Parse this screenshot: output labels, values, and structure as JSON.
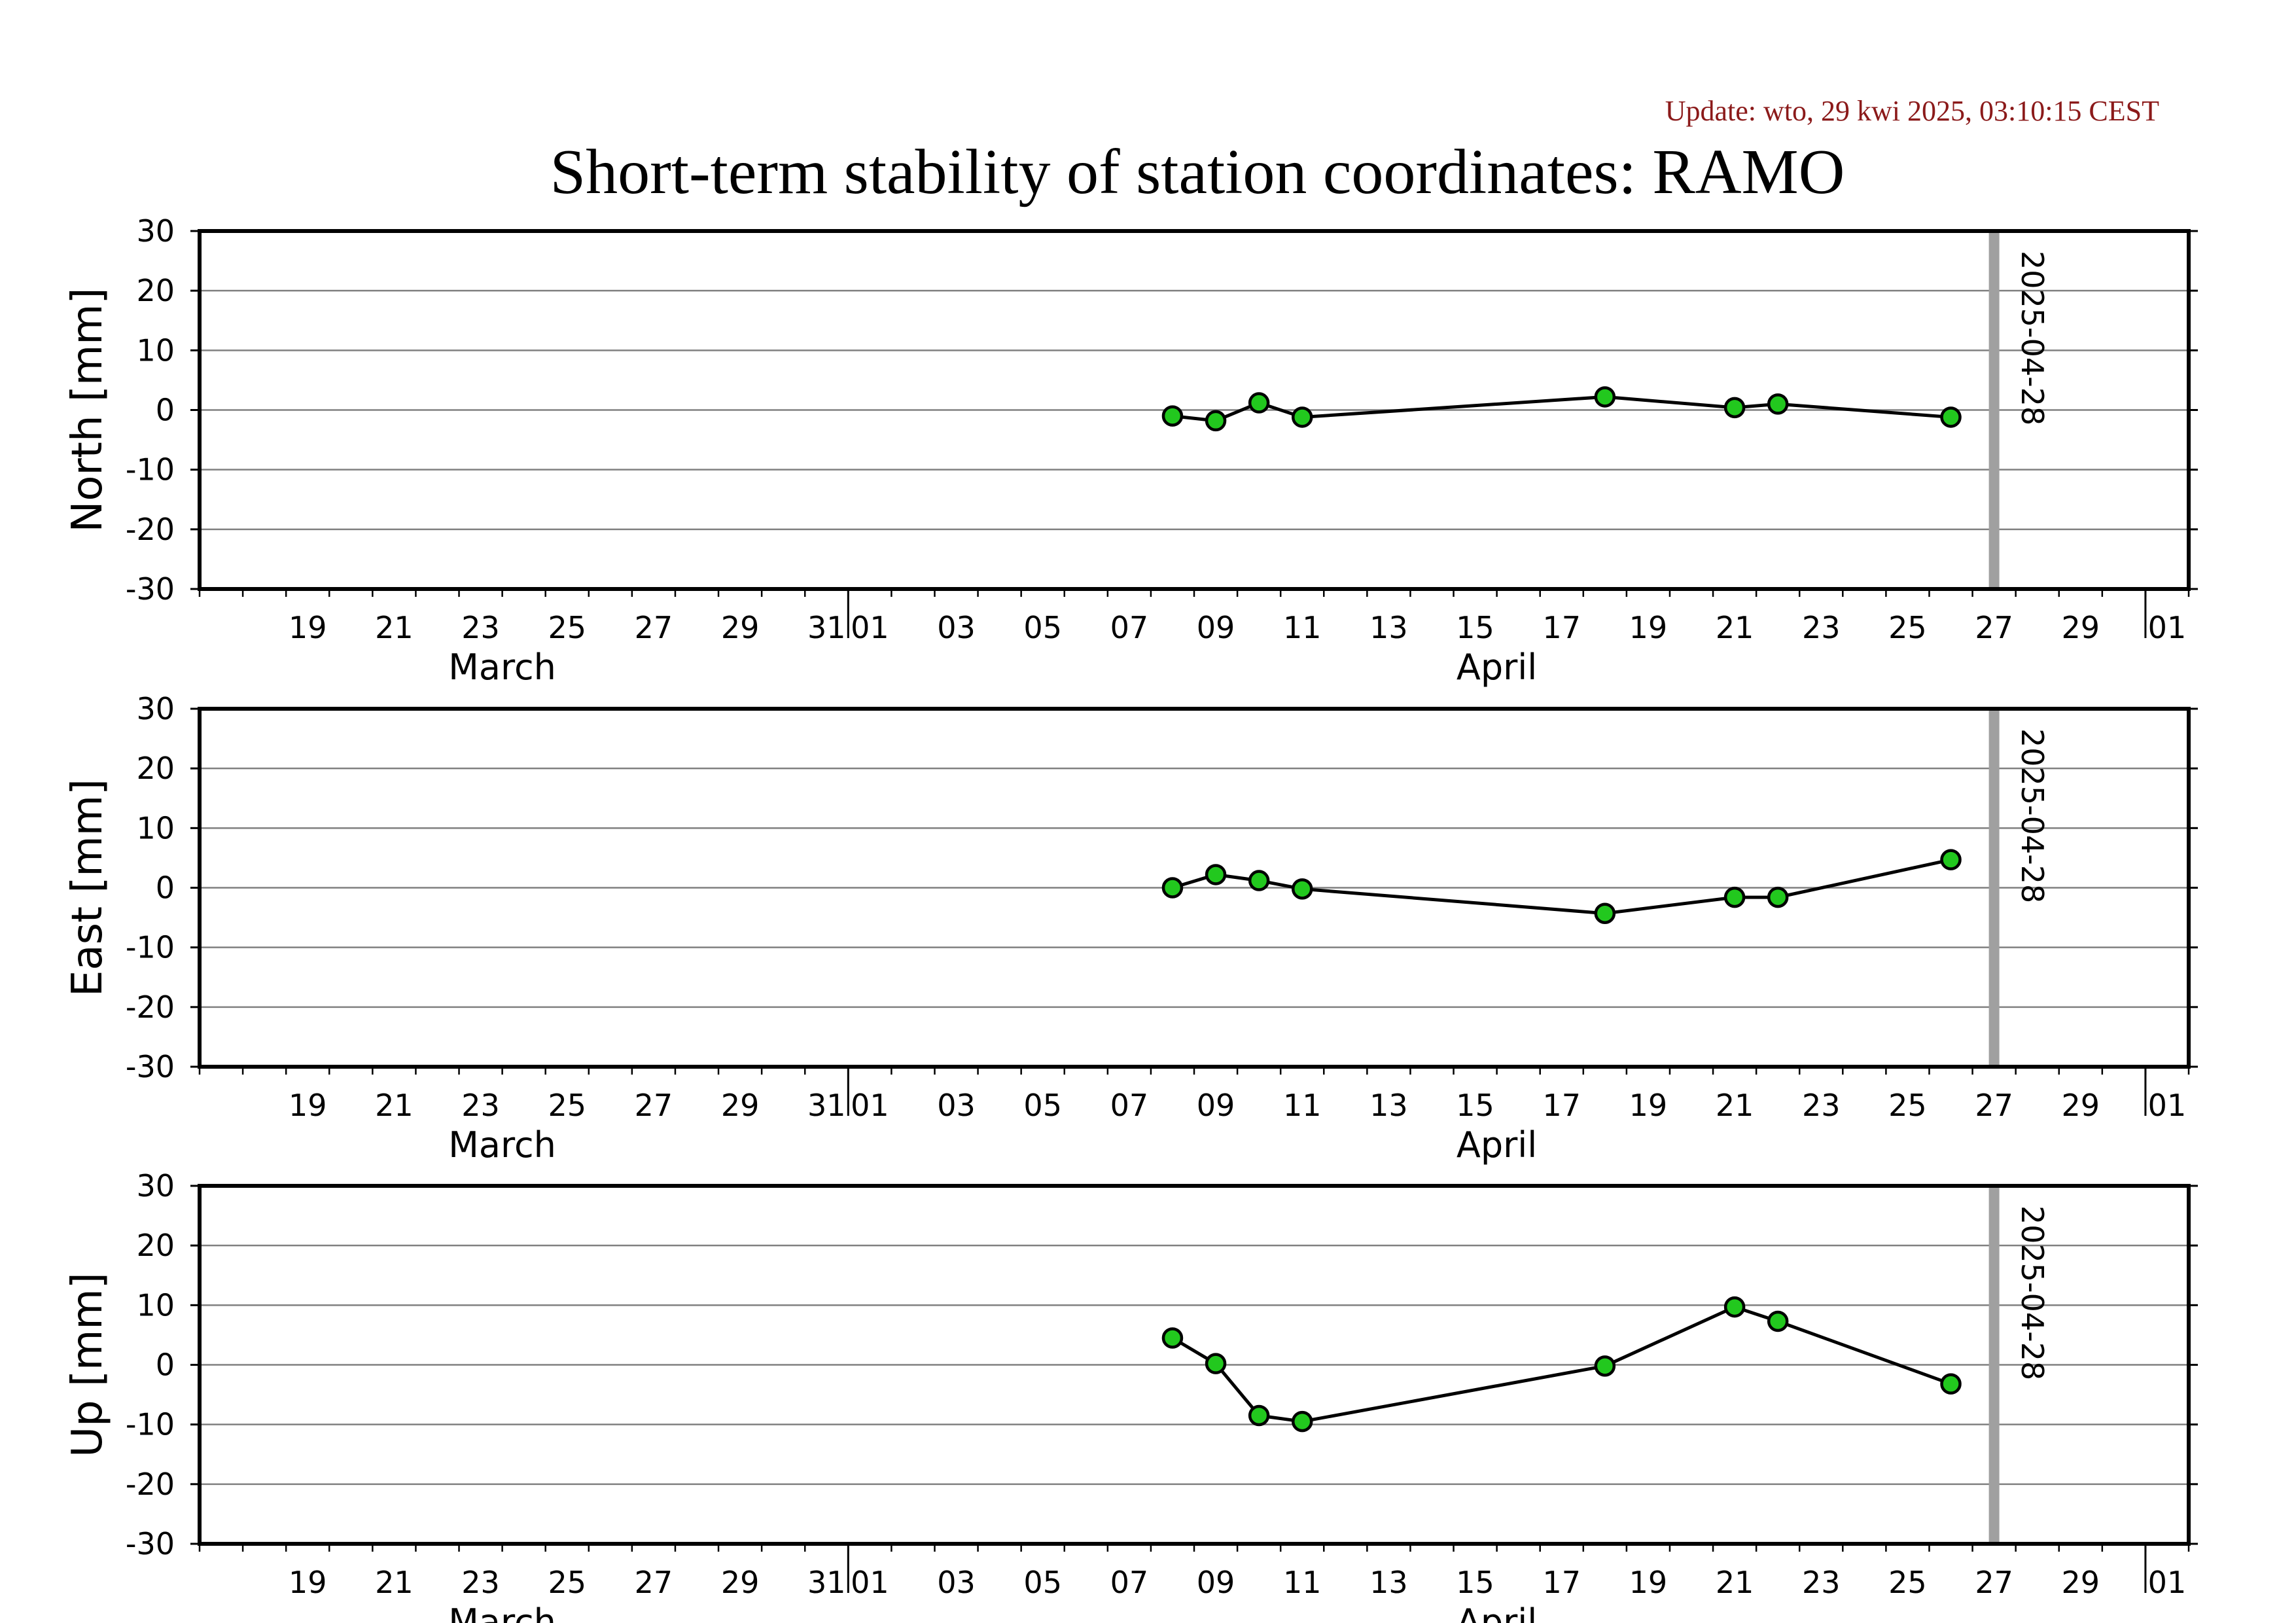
{
  "update_text": "Update: wto, 29 kwi 2025, 03:10:15 CEST",
  "title": "Short-term stability of station coordinates: RAMO",
  "chart_data": {
    "type": "line",
    "x_axis": {
      "start_date": "2025-03-17",
      "end_date": "2025-05-02",
      "tick_labels": [
        {
          "date": "2025-03-19",
          "label": "19"
        },
        {
          "date": "2025-03-21",
          "label": "21"
        },
        {
          "date": "2025-03-23",
          "label": "23"
        },
        {
          "date": "2025-03-25",
          "label": "25"
        },
        {
          "date": "2025-03-27",
          "label": "27"
        },
        {
          "date": "2025-03-29",
          "label": "29"
        },
        {
          "date": "2025-03-31",
          "label": "31"
        },
        {
          "date": "2025-04-01",
          "label": "01"
        },
        {
          "date": "2025-04-03",
          "label": "03"
        },
        {
          "date": "2025-04-05",
          "label": "05"
        },
        {
          "date": "2025-04-07",
          "label": "07"
        },
        {
          "date": "2025-04-09",
          "label": "09"
        },
        {
          "date": "2025-04-11",
          "label": "11"
        },
        {
          "date": "2025-04-13",
          "label": "13"
        },
        {
          "date": "2025-04-15",
          "label": "15"
        },
        {
          "date": "2025-04-17",
          "label": "17"
        },
        {
          "date": "2025-04-19",
          "label": "19"
        },
        {
          "date": "2025-04-21",
          "label": "21"
        },
        {
          "date": "2025-04-23",
          "label": "23"
        },
        {
          "date": "2025-04-25",
          "label": "25"
        },
        {
          "date": "2025-04-27",
          "label": "27"
        },
        {
          "date": "2025-04-29",
          "label": "29"
        },
        {
          "date": "2025-05-01",
          "label": "01"
        }
      ],
      "month_boundaries": [
        "2025-04-01",
        "2025-05-01"
      ],
      "months": [
        {
          "label": "March",
          "center_date": "2025-03-24"
        },
        {
          "label": "April",
          "center_date": "2025-04-16"
        }
      ]
    },
    "ylim": [
      -30,
      30
    ],
    "y_ticks": [
      30,
      20,
      10,
      0,
      -10,
      -20,
      -30
    ],
    "grid": "horizontal",
    "reference_line": {
      "date": "2025-04-28",
      "label": "2025-04-28",
      "color": "#a0a0a0"
    },
    "marker_color": "#22c81e",
    "line_color": "#000000",
    "x": [
      "2025-04-08",
      "2025-04-09",
      "2025-04-10",
      "2025-04-11",
      "2025-04-18",
      "2025-04-21",
      "2025-04-22",
      "2025-04-26"
    ],
    "panels": [
      {
        "ylabel": "North [mm]",
        "values": [
          -1.0,
          -1.8,
          1.2,
          -1.2,
          2.2,
          0.4,
          1.0,
          -1.2
        ]
      },
      {
        "ylabel": "East [mm]",
        "values": [
          0.0,
          2.2,
          1.2,
          -0.2,
          -4.3,
          -1.6,
          -1.6,
          4.7
        ]
      },
      {
        "ylabel": "Up [mm]",
        "values": [
          4.5,
          0.2,
          -8.5,
          -9.5,
          -0.2,
          9.7,
          7.3,
          -3.2
        ]
      }
    ]
  }
}
